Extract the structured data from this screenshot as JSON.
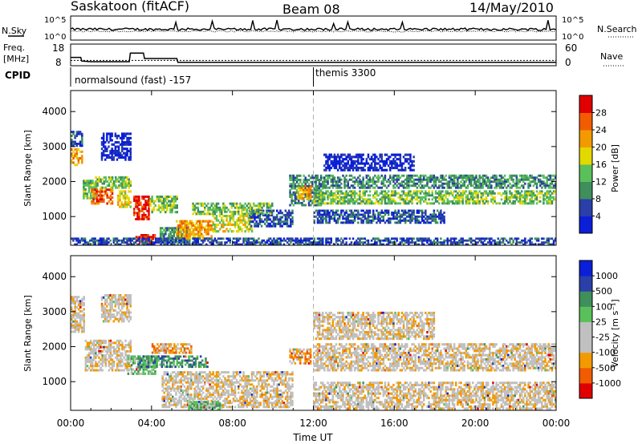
{
  "header": {
    "station": "Saskatoon (fitACF)",
    "beam": "Beam 08",
    "date": "14/May/2010"
  },
  "noise_panel": {
    "left_label": "N.Sky",
    "right_label": "N.Search",
    "ticks_left": [
      "10^5",
      "10^0"
    ],
    "ticks_right": [
      "10^5",
      "10^0"
    ]
  },
  "freq_panel": {
    "label_line1": "Freq.",
    "label_line2": "[MHz]",
    "right_label": "Nave",
    "ticks_left": [
      "18",
      "8"
    ],
    "ticks_right": [
      "60",
      "0"
    ],
    "freq_steps": [
      {
        "t": 0.0,
        "mhz": 13.8
      },
      {
        "t": 0.5,
        "mhz": 13.8
      },
      {
        "t": 0.55,
        "mhz": 11.2
      },
      {
        "t": 1.0,
        "mhz": 10.8
      },
      {
        "t": 2.9,
        "mhz": 10.8
      },
      {
        "t": 2.95,
        "mhz": 16.7
      },
      {
        "t": 3.6,
        "mhz": 16.7
      },
      {
        "t": 3.65,
        "mhz": 13.0
      },
      {
        "t": 5.25,
        "mhz": 13.0
      },
      {
        "t": 5.3,
        "mhz": 10.4
      },
      {
        "t": 24.0,
        "mhz": 10.4
      }
    ],
    "nave_level": 22
  },
  "cpid": {
    "label": "CPID",
    "segment1": "normalsound (fast) -157",
    "segment2": "themis 3300",
    "switch_hour": 12
  },
  "colors": {
    "power": [
      "#0b1fd8",
      "#2a3fa8",
      "#3f8f5c",
      "#5ac05a",
      "#e3d800",
      "#f39a00",
      "#f25c00",
      "#e00000"
    ],
    "velocity": [
      "#e00000",
      "#f25c00",
      "#f39a00",
      "#c0c0c0",
      "#c0c0c0",
      "#5ac05a",
      "#3f8f5c",
      "#2a3fa8",
      "#0b1fd8"
    ],
    "dashed_line": "#b0b0b0"
  },
  "chart_data": [
    {
      "type": "heatmap",
      "title": "",
      "xlabel": "Time UT",
      "ylabel": "Slant Range [km]",
      "colorbar_label": "Power [dB]",
      "colorbar_ticks": [
        "4",
        "8",
        "12",
        "16",
        "20",
        "24",
        "28"
      ],
      "xlim": [
        0,
        24
      ],
      "ylim": [
        180,
        4600
      ],
      "yticks": [
        "1000",
        "2000",
        "3000",
        "4000"
      ],
      "xticks": [
        "00:00",
        "04:00",
        "08:00",
        "12:00",
        "16:00",
        "20:00",
        "00:00"
      ],
      "echo_regions": [
        {
          "t0": 0.0,
          "t1": 0.6,
          "r0": 2450,
          "r1": 2950,
          "level": 5
        },
        {
          "t0": 0.0,
          "t1": 0.6,
          "r0": 3000,
          "r1": 3450,
          "level": 1
        },
        {
          "t0": 0.6,
          "t1": 1.3,
          "r0": 1500,
          "r1": 2050,
          "level": 3
        },
        {
          "t0": 1.0,
          "t1": 2.1,
          "r0": 1350,
          "r1": 1800,
          "level": 6
        },
        {
          "t0": 1.2,
          "t1": 3.0,
          "r0": 1800,
          "r1": 2150,
          "level": 3
        },
        {
          "t0": 1.5,
          "t1": 3.0,
          "r0": 2600,
          "r1": 3400,
          "level": 0
        },
        {
          "t0": 2.3,
          "t1": 3.0,
          "r0": 1250,
          "r1": 1750,
          "level": 4
        },
        {
          "t0": 3.1,
          "t1": 3.9,
          "r0": 900,
          "r1": 1600,
          "level": 7
        },
        {
          "t0": 3.9,
          "t1": 5.3,
          "r0": 1100,
          "r1": 1600,
          "level": 3
        },
        {
          "t0": 3.2,
          "t1": 4.2,
          "r0": 230,
          "r1": 500,
          "level": 7
        },
        {
          "t0": 4.4,
          "t1": 5.8,
          "r0": 250,
          "r1": 700,
          "level": 2
        },
        {
          "t0": 5.2,
          "t1": 7.0,
          "r0": 350,
          "r1": 900,
          "level": 5
        },
        {
          "t0": 7.0,
          "t1": 9.0,
          "r0": 550,
          "r1": 1050,
          "level": 4
        },
        {
          "t0": 8.8,
          "t1": 11.0,
          "r0": 700,
          "r1": 1200,
          "level": 1
        },
        {
          "t0": 6.0,
          "t1": 10.0,
          "r0": 1050,
          "r1": 1400,
          "level": 3
        },
        {
          "t0": 10.8,
          "t1": 12.5,
          "r0": 1300,
          "r1": 2200,
          "level": 2
        },
        {
          "t0": 11.2,
          "t1": 11.9,
          "r0": 1500,
          "r1": 1900,
          "level": 5
        },
        {
          "t0": 12.0,
          "t1": 24.0,
          "r0": 1350,
          "r1": 1750,
          "level": 3
        },
        {
          "t0": 12.5,
          "t1": 24.0,
          "r0": 1800,
          "r1": 2200,
          "level": 2
        },
        {
          "t0": 12.5,
          "t1": 17.0,
          "r0": 2300,
          "r1": 2800,
          "level": 0
        },
        {
          "t0": 12.0,
          "t1": 18.5,
          "r0": 800,
          "r1": 1200,
          "level": 1
        },
        {
          "t0": 0.0,
          "t1": 24.0,
          "r0": 180,
          "r1": 400,
          "level": 1
        }
      ]
    },
    {
      "type": "heatmap",
      "title": "",
      "xlabel": "Time UT",
      "ylabel": "Slant Range [km]",
      "colorbar_label": "Velocity [m s⁻¹]",
      "colorbar_ticks": [
        "1000",
        "500",
        "100",
        "25",
        "-25",
        "-100",
        "-500",
        "-1000"
      ],
      "xlim": [
        0,
        24
      ],
      "ylim": [
        180,
        4600
      ],
      "yticks": [
        "1000",
        "2000",
        "3000",
        "4000"
      ],
      "xticks": [
        "00:00",
        "04:00",
        "08:00",
        "12:00",
        "16:00",
        "20:00",
        "00:00"
      ],
      "echo_regions": [
        {
          "t0": 0.0,
          "t1": 0.7,
          "r0": 2400,
          "r1": 3450,
          "level": 3
        },
        {
          "t0": 0.7,
          "t1": 3.0,
          "r0": 1300,
          "r1": 2200,
          "level": 3
        },
        {
          "t0": 1.5,
          "t1": 3.0,
          "r0": 2700,
          "r1": 3500,
          "level": 3
        },
        {
          "t0": 2.8,
          "t1": 4.3,
          "r0": 1200,
          "r1": 1750,
          "level": 5
        },
        {
          "t0": 3.3,
          "t1": 6.8,
          "r0": 1400,
          "r1": 1750,
          "level": 6
        },
        {
          "t0": 4.0,
          "t1": 6.0,
          "r0": 1800,
          "r1": 2100,
          "level": 2
        },
        {
          "t0": 4.5,
          "t1": 11.0,
          "r0": 250,
          "r1": 1300,
          "level": 3
        },
        {
          "t0": 5.8,
          "t1": 7.5,
          "r0": 180,
          "r1": 450,
          "level": 5
        },
        {
          "t0": 10.8,
          "t1": 11.9,
          "r0": 1500,
          "r1": 1950,
          "level": 2
        },
        {
          "t0": 12.0,
          "t1": 24.0,
          "r0": 1300,
          "r1": 2100,
          "level": 3
        },
        {
          "t0": 12.0,
          "t1": 18.0,
          "r0": 2200,
          "r1": 3000,
          "level": 3
        },
        {
          "t0": 12.0,
          "t1": 24.0,
          "r0": 200,
          "r1": 1000,
          "level": 3
        }
      ]
    }
  ]
}
